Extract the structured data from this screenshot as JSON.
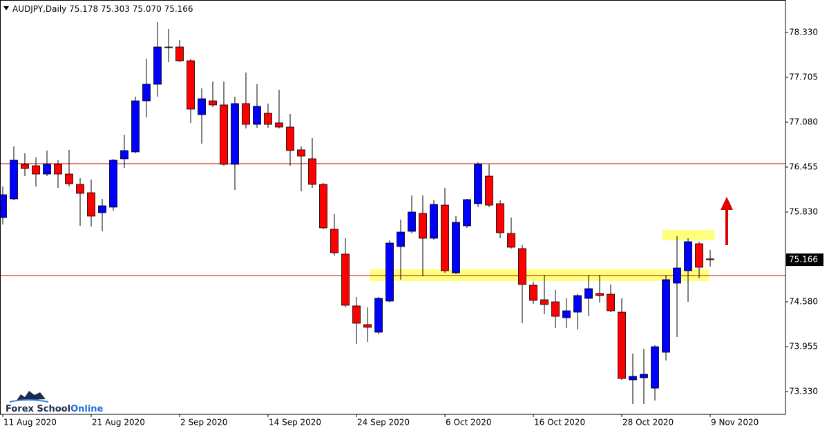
{
  "chart_data": {
    "type": "candlestick",
    "title": "AUDJPY,Daily",
    "ohlc_labels": [
      "75.178",
      "75.303",
      "75.070",
      "75.166"
    ],
    "categories": [
      "11 Aug 2020",
      null,
      null,
      null,
      null,
      null,
      null,
      null,
      "21 Aug 2020",
      null,
      null,
      null,
      null,
      null,
      null,
      null,
      "2 Sep 2020",
      null,
      null,
      null,
      null,
      null,
      null,
      null,
      "14 Sep 2020",
      null,
      null,
      null,
      null,
      null,
      null,
      null,
      "24 Sep 2020",
      null,
      null,
      null,
      null,
      null,
      null,
      null,
      "6 Oct 2020",
      null,
      null,
      null,
      null,
      null,
      null,
      null,
      "16 Oct 2020",
      null,
      null,
      null,
      null,
      null,
      null,
      null,
      "28 Oct 2020",
      null,
      null,
      null,
      null,
      null,
      null,
      null,
      "9 Nov 2020"
    ],
    "open": [
      75.753,
      76.013,
      76.494,
      76.474,
      76.359,
      76.494,
      76.359,
      76.215,
      76.099,
      75.821,
      75.898,
      76.571,
      76.667,
      77.378,
      77.609,
      78.128,
      78.128,
      77.936,
      77.186,
      77.378,
      77.321,
      76.494,
      77.34,
      77.051,
      77.205,
      77.071,
      77.013,
      76.696,
      76.571,
      76.215,
      75.59,
      75.244,
      74.523,
      74.263,
      74.157,
      74.59,
      75.349,
      75.561,
      75.811,
      75.465,
      75.926,
      74.984,
      75.638,
      75.946,
      76.33,
      75.946,
      75.532,
      75.321,
      74.811,
      74.609,
      74.58,
      74.359,
      74.436,
      74.628,
      74.696,
      74.686,
      74.436,
      73.494,
      73.523,
      73.378,
      73.878,
      74.84,
      75.013,
      75.388,
      75.178
    ],
    "high": [
      76.186,
      76.744,
      76.648,
      76.59,
      76.686,
      76.551,
      76.696,
      76.301,
      76.282,
      76.013,
      76.571,
      76.907,
      77.436,
      77.965,
      78.474,
      78.378,
      78.224,
      77.965,
      77.551,
      77.647,
      77.647,
      77.436,
      77.772,
      77.609,
      77.34,
      77.532,
      77.196,
      76.744,
      76.859,
      76.234,
      75.801,
      75.465,
      74.648,
      74.503,
      74.648,
      75.436,
      75.724,
      76.061,
      76.061,
      75.994,
      76.167,
      75.773,
      76.013,
      76.523,
      76.494,
      75.994,
      75.753,
      75.369,
      74.859,
      74.955,
      74.744,
      74.628,
      74.696,
      74.955,
      74.955,
      74.821,
      74.628,
      73.859,
      73.926,
      73.975,
      74.955,
      75.494,
      75.465,
      75.417,
      75.303
    ],
    "low": [
      75.657,
      75.994,
      76.33,
      76.186,
      76.33,
      76.167,
      76.186,
      75.638,
      75.628,
      75.561,
      75.849,
      76.446,
      76.648,
      77.147,
      77.436,
      77.917,
      77.917,
      77.071,
      76.782,
      77.292,
      76.474,
      76.138,
      76.994,
      77.003,
      77.003,
      76.994,
      76.474,
      76.119,
      76.167,
      75.59,
      75.224,
      74.503,
      73.994,
      74.023,
      74.128,
      74.571,
      74.888,
      75.532,
      74.936,
      75.446,
      74.984,
      74.965,
      75.609,
      75.898,
      75.898,
      75.465,
      75.321,
      74.282,
      74.551,
      74.407,
      74.215,
      74.215,
      74.196,
      74.378,
      74.571,
      74.436,
      73.494,
      73.157,
      73.157,
      73.205,
      73.763,
      74.09,
      74.58,
      74.907,
      75.07
    ],
    "close": [
      76.071,
      76.551,
      76.436,
      76.359,
      76.494,
      76.359,
      76.224,
      76.09,
      75.773,
      75.917,
      76.551,
      76.686,
      77.378,
      77.609,
      78.128,
      78.119,
      77.936,
      77.263,
      77.407,
      77.321,
      76.494,
      77.34,
      77.051,
      77.301,
      77.051,
      77.013,
      76.686,
      76.609,
      76.215,
      75.609,
      75.263,
      74.532,
      74.282,
      74.225,
      74.628,
      75.398,
      75.551,
      75.83,
      75.465,
      75.936,
      75.013,
      75.686,
      76.003,
      76.494,
      75.926,
      75.542,
      75.34,
      74.821,
      74.6,
      74.542,
      74.378,
      74.455,
      74.667,
      74.763,
      74.667,
      74.455,
      73.513,
      73.542,
      73.571,
      73.955,
      74.888,
      75.051,
      75.417,
      75.061,
      75.166
    ],
    "up_color": "#0000ff",
    "down_color": "#ff0000",
    "ylim": [
      73.013,
      78.782
    ],
    "yticks": [
      {
        "value": 73.33,
        "label": "73.330"
      },
      {
        "value": 73.955,
        "label": "73.955"
      },
      {
        "value": 74.58,
        "label": "74.580"
      },
      {
        "value": 75.83,
        "label": "75.830"
      },
      {
        "value": 76.455,
        "label": "76.455"
      },
      {
        "value": 77.08,
        "label": "77.080"
      },
      {
        "value": 77.705,
        "label": "77.705"
      },
      {
        "value": 78.33,
        "label": "78.330"
      }
    ],
    "current_price": {
      "value": 75.166,
      "label": "75.166"
    },
    "hlines": [
      {
        "value": 76.503,
        "color": "#c00000"
      },
      {
        "value": 74.946,
        "color": "#c00000"
      }
    ],
    "zones": [
      {
        "ylim": [
          74.869,
          75.032
        ],
        "xrange": [
          33.2,
          63.9
        ],
        "color": "#ffff66"
      },
      {
        "ylim": [
          75.436,
          75.58
        ],
        "xrange": [
          59.7,
          64.4
        ],
        "color": "#ffff66"
      }
    ],
    "logo": [
      "Forex School",
      "Online"
    ]
  }
}
